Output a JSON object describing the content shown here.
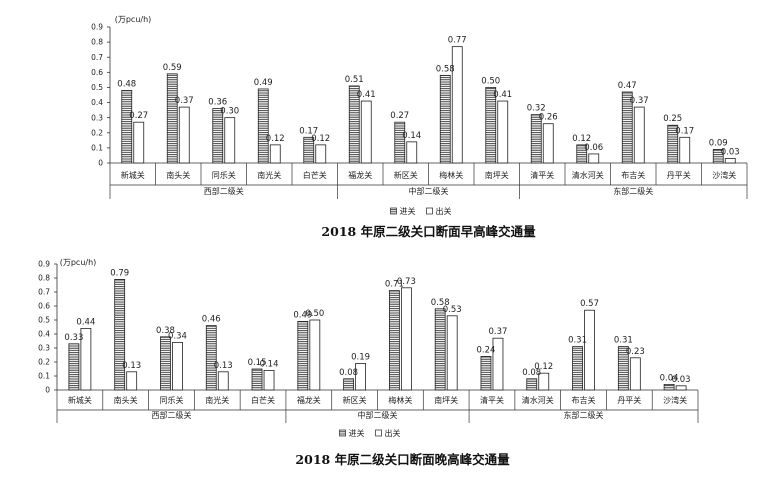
{
  "chart_data": [
    {
      "type": "bar",
      "title": "2018 年原二级关口断面早高峰交通量",
      "unit_label": "(万pcu/h)",
      "ylim": [
        0,
        0.9
      ],
      "yticks": [
        "0",
        "0.1",
        "0.2",
        "0.3",
        "0.4",
        "0.5",
        "0.6",
        "0.7",
        "0.8",
        "0.9"
      ],
      "categories": [
        "新城关",
        "南头关",
        "同乐关",
        "南光关",
        "白芒关",
        "福龙关",
        "新区关",
        "梅林关",
        "南坪关",
        "清平关",
        "清水河关",
        "布吉关",
        "丹平关",
        "沙湾关"
      ],
      "groups": [
        {
          "name": "西部二级关",
          "count": 5
        },
        {
          "name": "中部二级关",
          "count": 4
        },
        {
          "name": "东部二级关",
          "count": 5
        }
      ],
      "series": [
        {
          "name": "进关",
          "values": [
            0.48,
            0.59,
            0.36,
            0.49,
            0.17,
            0.51,
            0.27,
            0.58,
            0.5,
            0.32,
            0.12,
            0.47,
            0.25,
            0.09
          ]
        },
        {
          "name": "出关",
          "values": [
            0.27,
            0.37,
            0.3,
            0.12,
            0.12,
            0.41,
            0.14,
            0.77,
            0.41,
            0.26,
            0.06,
            0.37,
            0.17,
            0.03
          ]
        }
      ],
      "data_labels": [
        [
          "0.48",
          "0.59",
          "0.36",
          "0.49",
          "0.17",
          "0.51",
          "0.27",
          "0.58",
          "0.50",
          "0.32",
          "0.12",
          "0.47",
          "0.25",
          "0.09"
        ],
        [
          "0.27",
          "0.37",
          "0.30",
          "0.12",
          "0.12",
          "0.41",
          "0.14",
          "0.77",
          "0.41",
          "0.26",
          "0.06",
          "0.37",
          "0.17",
          "0.03"
        ]
      ],
      "legend": "bottom-center",
      "grid": false
    },
    {
      "type": "bar",
      "title": "2018 年原二级关口断面晚高峰交通量",
      "unit_label": "(万pcu/h)",
      "ylim": [
        0,
        0.9
      ],
      "yticks": [
        "0",
        "0.1",
        "0.2",
        "0.3",
        "0.4",
        "0.5",
        "0.6",
        "0.7",
        "0.8",
        "0.9"
      ],
      "categories": [
        "新城关",
        "南头关",
        "同乐关",
        "南光关",
        "白芒关",
        "福龙关",
        "新区关",
        "梅林关",
        "南坪关",
        "清平关",
        "清水河关",
        "布吉关",
        "丹平关",
        "沙湾关"
      ],
      "groups": [
        {
          "name": "西部二级关",
          "count": 5
        },
        {
          "name": "中部二级关",
          "count": 4
        },
        {
          "name": "东部二级关",
          "count": 5
        }
      ],
      "series": [
        {
          "name": "进关",
          "values": [
            0.33,
            0.79,
            0.38,
            0.46,
            0.15,
            0.49,
            0.08,
            0.71,
            0.58,
            0.24,
            0.08,
            0.31,
            0.31,
            0.04
          ]
        },
        {
          "name": "出关",
          "values": [
            0.44,
            0.13,
            0.34,
            0.13,
            0.14,
            0.5,
            0.19,
            0.73,
            0.53,
            0.37,
            0.12,
            0.57,
            0.23,
            0.03
          ]
        }
      ],
      "data_labels": [
        [
          "0.33",
          "0.79",
          "0.38",
          "0.46",
          "0.15",
          "0.49",
          "0.08",
          "0.71",
          "0.58",
          "0.24",
          "0.08",
          "0.31",
          "0.31",
          "0.04"
        ],
        [
          "0.44",
          "0.13",
          "0.34",
          "0.13",
          "0.14",
          "0.50",
          "0.19",
          "0.73",
          "0.53",
          "0.37",
          "0.12",
          "0.57",
          "0.23",
          "0.03"
        ]
      ],
      "legend": "bottom-center",
      "grid": false
    }
  ]
}
